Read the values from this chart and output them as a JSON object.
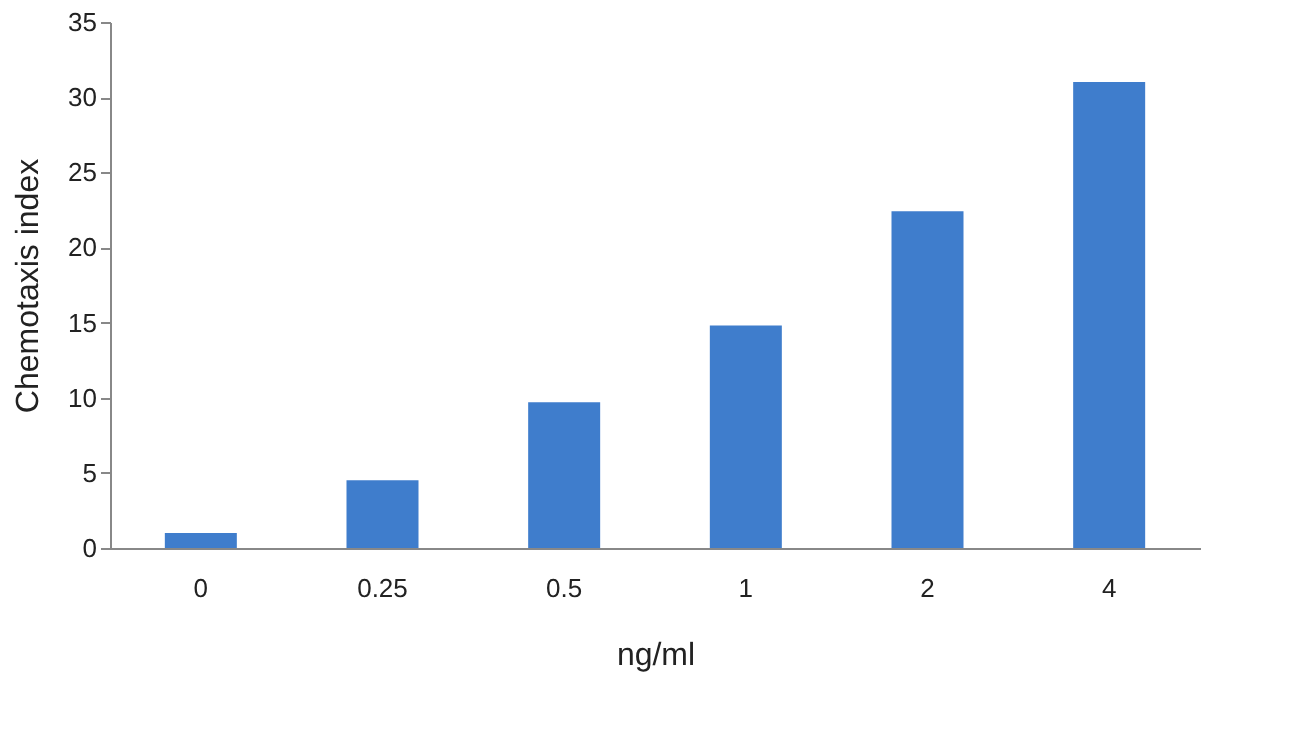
{
  "chart_data": {
    "type": "bar",
    "xlabel": "ng/ml",
    "ylabel": "Chemotaxis index",
    "categories": [
      "0",
      "0.25",
      "0.5",
      "1",
      "2",
      "4"
    ],
    "values": [
      1,
      4.5,
      9.7,
      14.8,
      22.4,
      31
    ],
    "color": "#3f7dcc",
    "ylim": [
      0,
      35
    ],
    "yticks": [
      0,
      5,
      10,
      15,
      20,
      25,
      30,
      35
    ],
    "grid": false
  }
}
